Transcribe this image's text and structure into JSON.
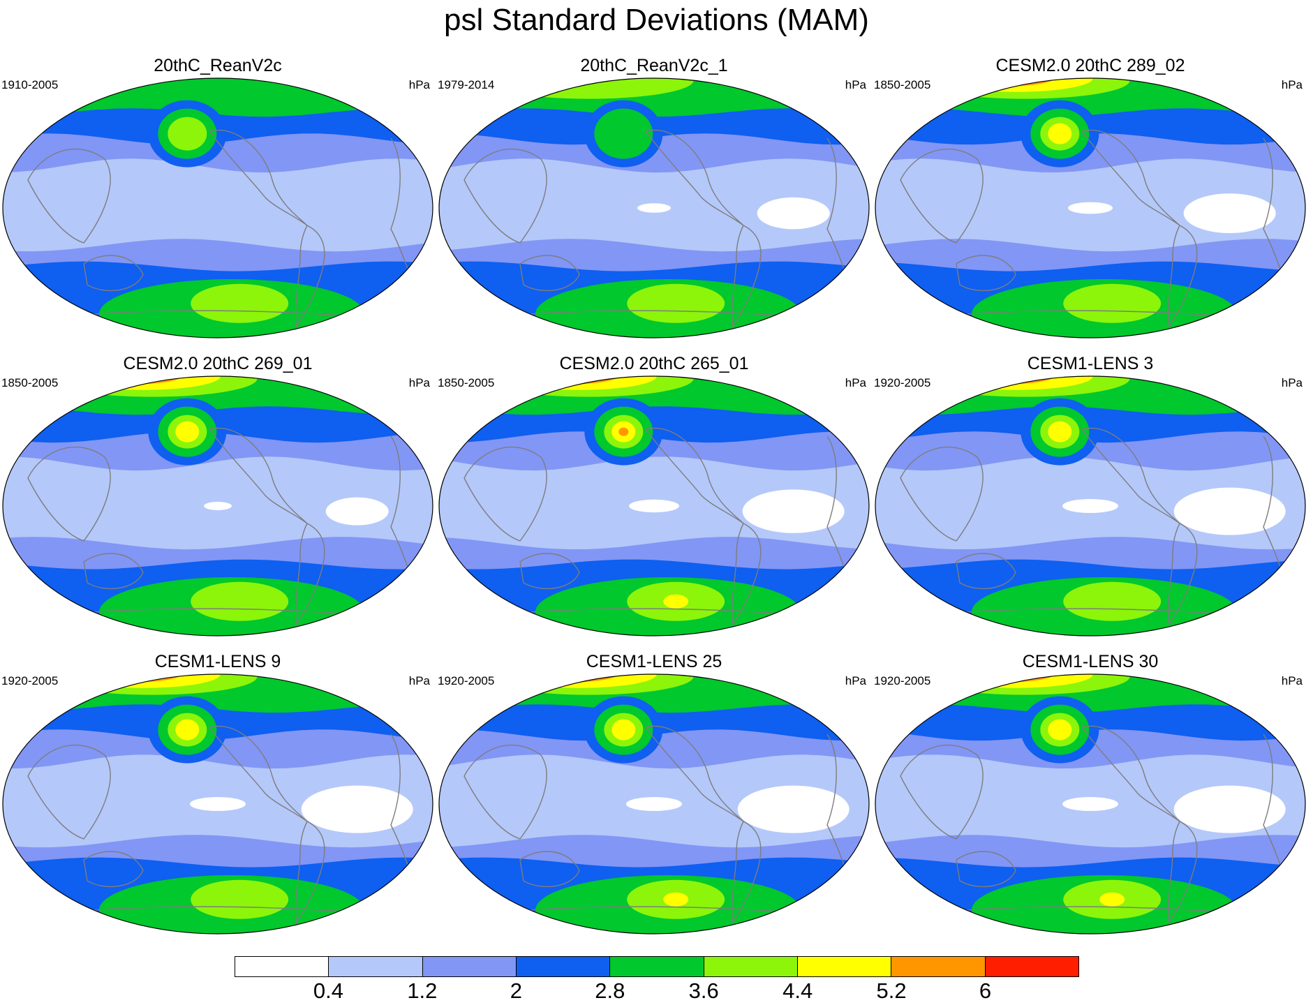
{
  "title": "psl Standard Deviations (MAM)",
  "panels": [
    {
      "title": "20thC_ReanV2c",
      "period": "1910-2005",
      "units": "hPa"
    },
    {
      "title": "20thC_ReanV2c_1",
      "period": "1979-2014",
      "units": "hPa"
    },
    {
      "title": "CESM2.0 20thC 289_02",
      "period": "1850-2005",
      "units": "hPa"
    },
    {
      "title": "CESM2.0 20thC 269_01",
      "period": "1850-2005",
      "units": "hPa"
    },
    {
      "title": "CESM2.0 20thC 265_01",
      "period": "1850-2005",
      "units": "hPa"
    },
    {
      "title": "CESM1-LENS 3",
      "period": "1920-2005",
      "units": "hPa"
    },
    {
      "title": "CESM1-LENS 9",
      "period": "1920-2005",
      "units": "hPa"
    },
    {
      "title": "CESM1-LENS 25",
      "period": "1920-2005",
      "units": "hPa"
    },
    {
      "title": "CESM1-LENS 30",
      "period": "1920-2005",
      "units": "hPa"
    }
  ],
  "colorbar": {
    "labels": [
      "0.4",
      "1.2",
      "2",
      "2.8",
      "3.6",
      "4.4",
      "5.2",
      "6"
    ],
    "colors": [
      "#ffffff",
      "#b4c8fa",
      "#8296f5",
      "#0f5ff0",
      "#00c82d",
      "#8cf50a",
      "#ffff00",
      "#ff9600",
      "#ff1e00"
    ]
  }
}
